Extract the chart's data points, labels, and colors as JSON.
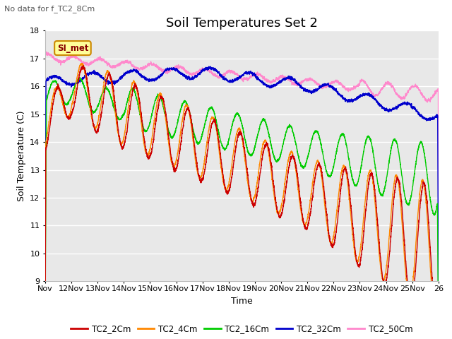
{
  "title": "Soil Temperatures Set 2",
  "subtitle": "No data for f_TC2_8Cm",
  "xlabel": "Time",
  "ylabel": "Soil Temperature (C)",
  "ylim": [
    9.0,
    18.0
  ],
  "yticks": [
    9.0,
    10.0,
    11.0,
    12.0,
    13.0,
    14.0,
    15.0,
    16.0,
    17.0,
    18.0
  ],
  "x_labels": [
    "Nov",
    "12Nov",
    "13Nov",
    "14Nov",
    "15Nov",
    "16Nov",
    "17Nov",
    "18Nov",
    "19Nov",
    "20Nov",
    "21Nov",
    "22Nov",
    "23Nov",
    "24Nov",
    "25Nov",
    "26"
  ],
  "n_points": 3600,
  "series_colors": {
    "TC2_2Cm": "#cc0000",
    "TC2_4Cm": "#ff8800",
    "TC2_16Cm": "#00cc00",
    "TC2_32Cm": "#0000cc",
    "TC2_50Cm": "#ff88cc"
  },
  "legend_label": "SI_met",
  "legend_box_color": "#ffff99",
  "legend_box_edge": "#cc8800",
  "background_color": "#ffffff",
  "plot_bg_color": "#e8e8e8",
  "grid_color": "#ffffff",
  "title_fontsize": 13,
  "axis_fontsize": 9,
  "tick_fontsize": 8
}
